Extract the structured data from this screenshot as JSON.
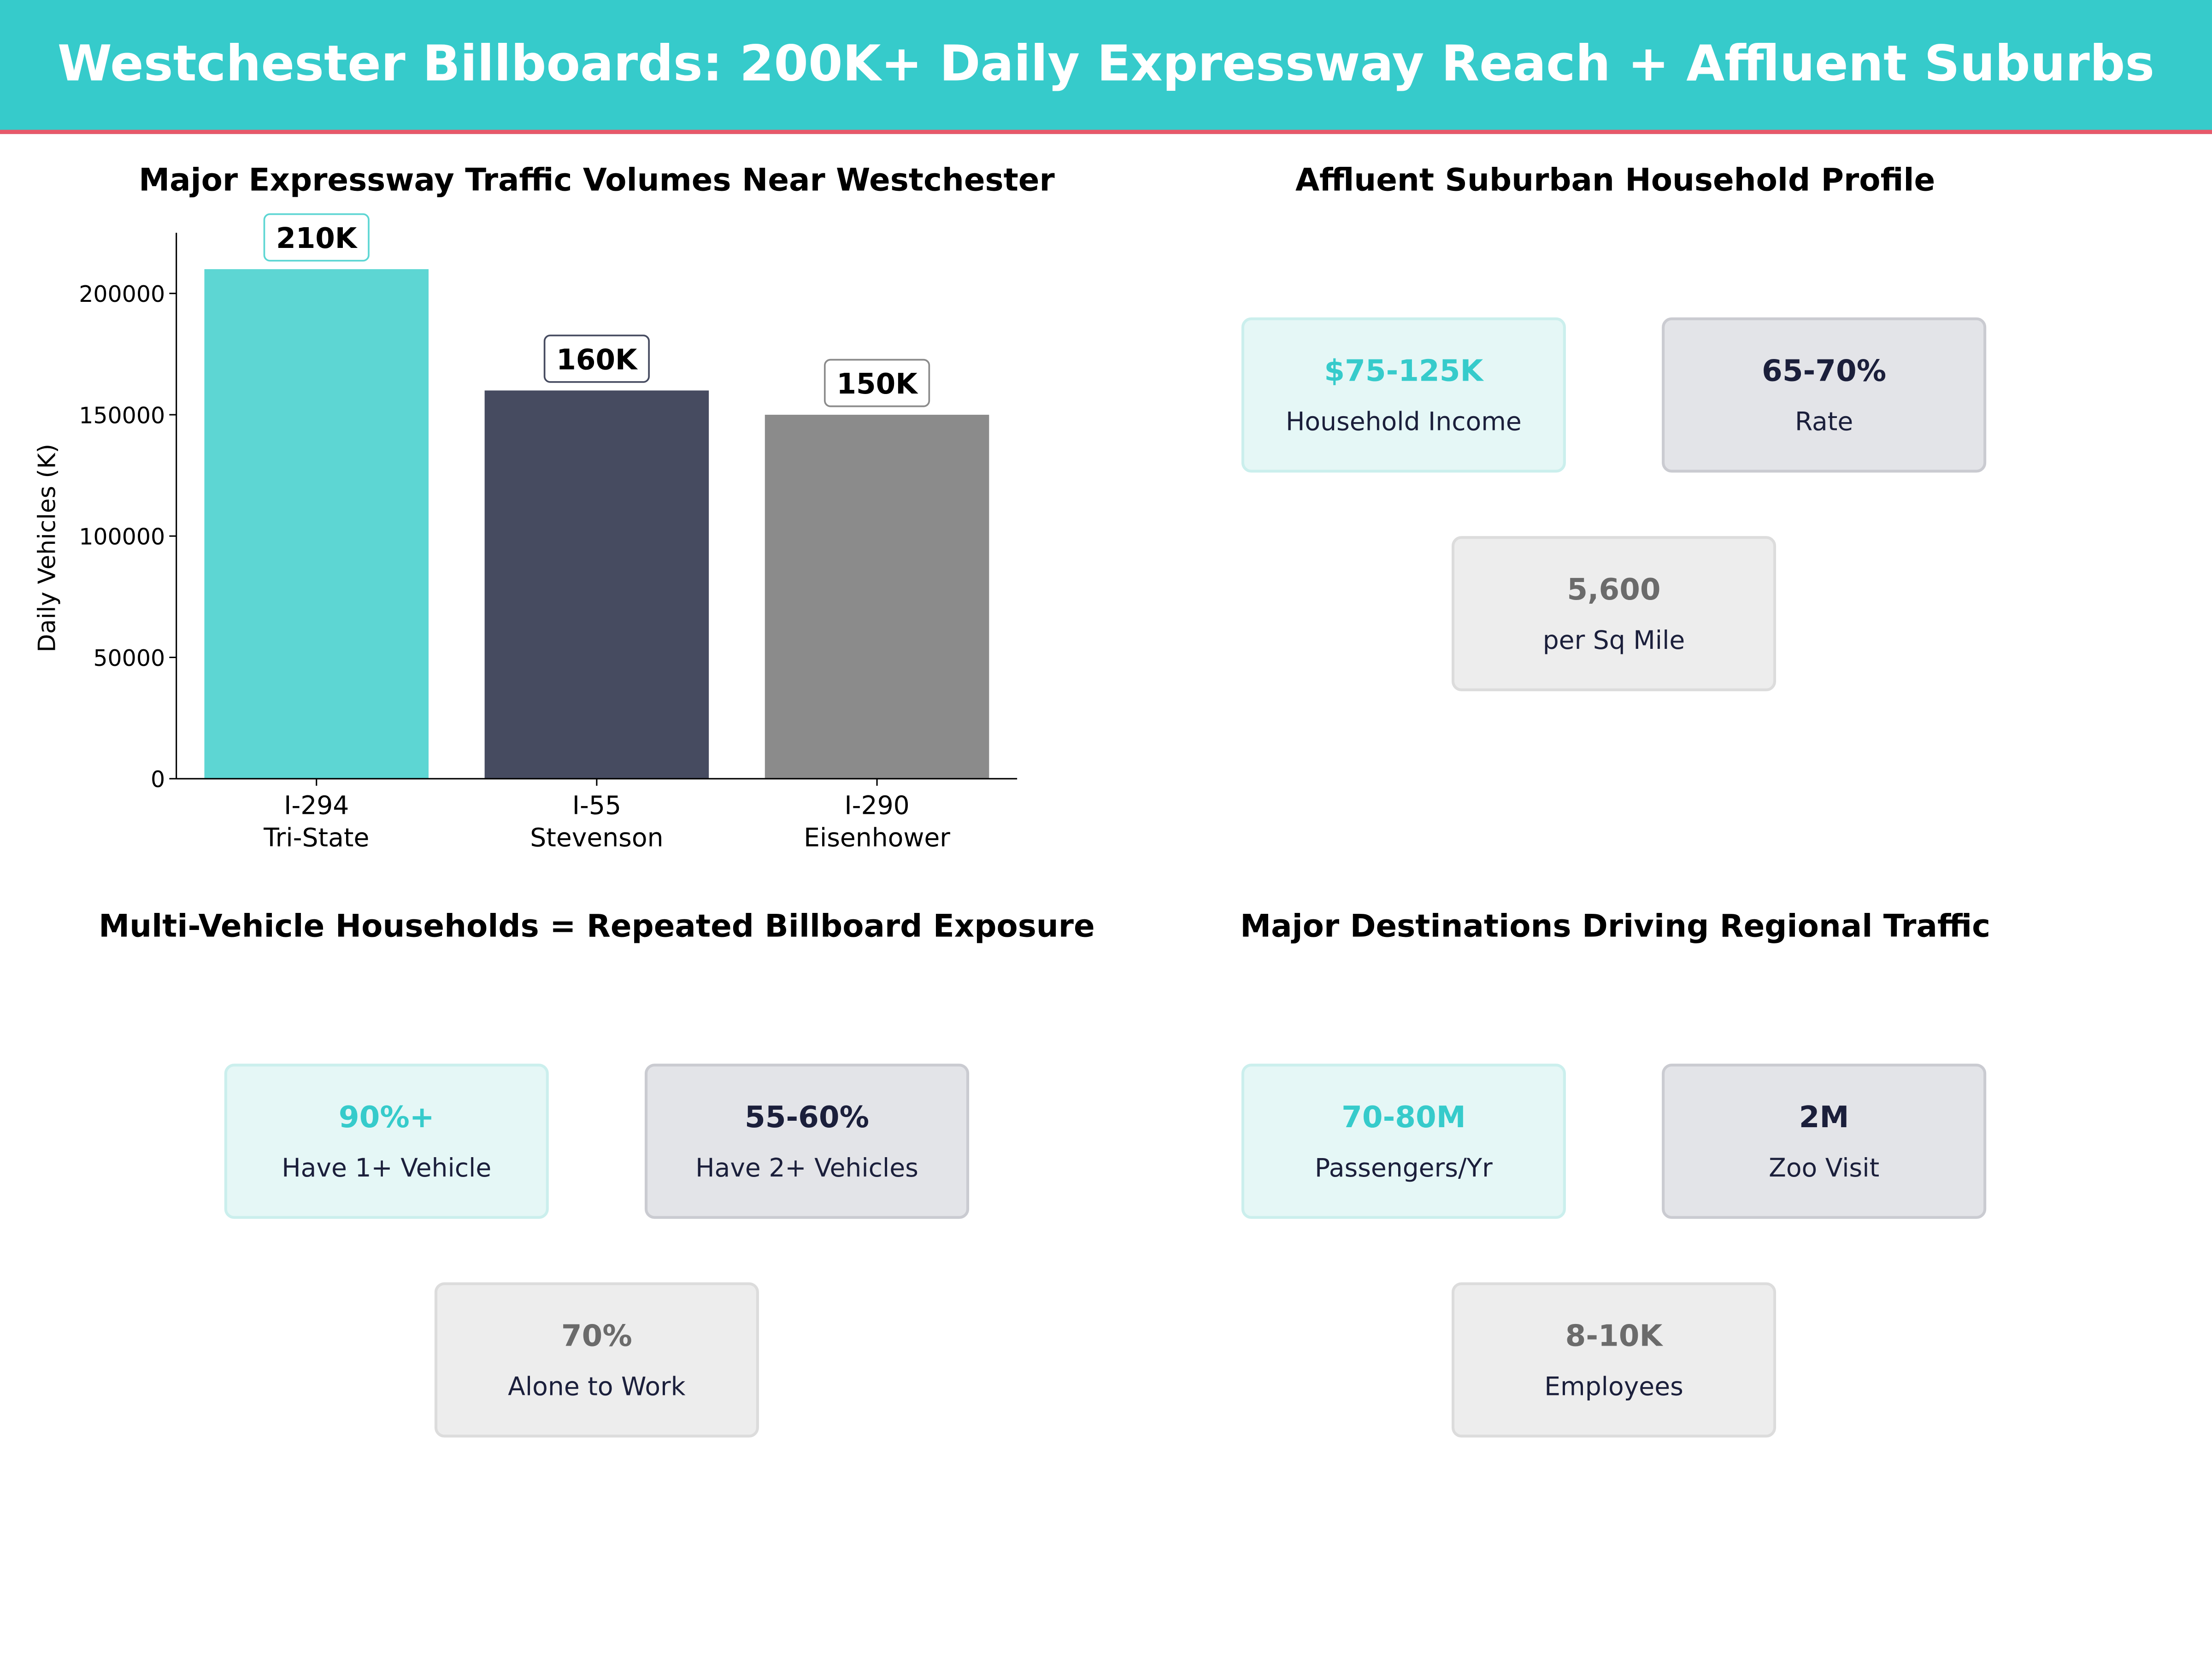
{
  "header": {
    "title": "Westchester Billboards: 200K+ Daily Expressway Reach + Affluent Suburbs"
  },
  "chart_data": {
    "type": "bar",
    "title": "Major Expressway Traffic Volumes Near Westchester",
    "xlabel": "",
    "ylabel": "Daily Vehicles (K)",
    "categories": [
      [
        "I-294",
        "Tri-State"
      ],
      [
        "I-55",
        "Stevenson"
      ],
      [
        "I-290",
        "Eisenhower"
      ]
    ],
    "values": [
      210000,
      160000,
      150000
    ],
    "data_labels": [
      "210K",
      "160K",
      "150K"
    ],
    "colors": [
      "#5DD6D3",
      "#464B60",
      "#8B8B8B"
    ],
    "label_border_colors": [
      "#5DD6D3",
      "#464B60",
      "#8B8B8B"
    ],
    "ylim": [
      0,
      225000
    ],
    "yticks": [
      0,
      50000,
      100000,
      150000,
      200000
    ],
    "grid": false
  },
  "panels": [
    {
      "title": "Affluent Suburban Household Profile",
      "cards": [
        {
          "value": "$75-125K",
          "label": "Household Income"
        },
        {
          "value": "65-70%",
          "label": "Rate"
        },
        {
          "value": "5,600",
          "label": "per Sq Mile"
        }
      ]
    },
    {
      "title": "Multi-Vehicle Households = Repeated Billboard Exposure",
      "cards": [
        {
          "value": "90%+",
          "label": "Have 1+ Vehicle"
        },
        {
          "value": "55-60%",
          "label": "Have 2+ Vehicles"
        },
        {
          "value": "70%",
          "label": "Alone to Work"
        }
      ]
    },
    {
      "title": "Major Destinations Driving Regional Traffic",
      "cards": [
        {
          "value": "70-80M",
          "label": "Passengers/Yr"
        },
        {
          "value": "2M",
          "label": "Zoo Visit"
        },
        {
          "value": "8-10K",
          "label": "Employees"
        }
      ]
    }
  ]
}
